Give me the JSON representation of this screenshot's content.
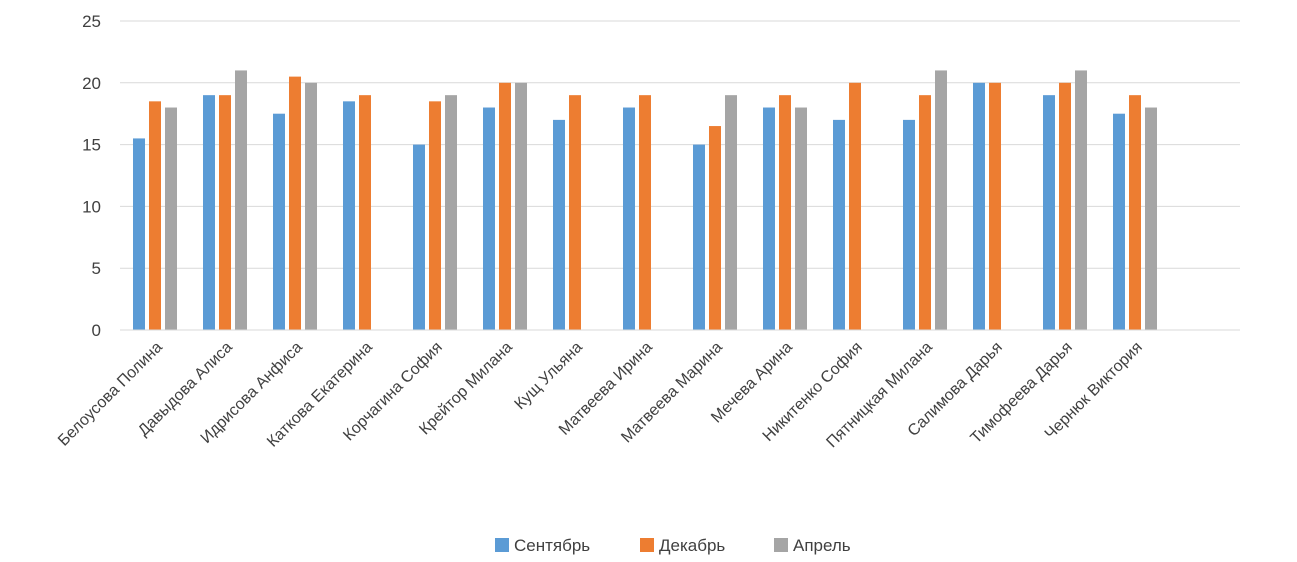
{
  "chart_data": {
    "type": "bar",
    "categories": [
      "Белоусова Полина",
      "Давыдова Алиса",
      "Идрисова Анфиса",
      "Каткова Екатерина",
      "Корчагина София",
      "Крейтор Милана",
      "Кущ Ульяна",
      "Матвеева Ирина",
      "Матвеева Марина",
      "Мечева Арина",
      "Никитенко София",
      "Пятницкая Милана",
      "Салимова Дарья",
      "Тимофеева Дарья",
      "Чернюк Виктория"
    ],
    "series": [
      {
        "name": "Сентябрь",
        "color": "#5B9BD5",
        "values": [
          15.5,
          19,
          17.5,
          18.5,
          15,
          18,
          17,
          18,
          15,
          18,
          17,
          17,
          20,
          19,
          17.5
        ]
      },
      {
        "name": "Декабрь",
        "color": "#ED7D31",
        "values": [
          18.5,
          19,
          20.5,
          19,
          18.5,
          20,
          19,
          19,
          16.5,
          19,
          20,
          19,
          20,
          20,
          19
        ]
      },
      {
        "name": "Апрель",
        "color": "#A5A5A5",
        "values": [
          18,
          21,
          20,
          0,
          19,
          20,
          0,
          0,
          19,
          18,
          0,
          21,
          0,
          21,
          18
        ]
      }
    ],
    "y_ticks": [
      "0",
      "5",
      "10",
      "15",
      "20",
      "25"
    ],
    "ylim": [
      0,
      25
    ],
    "grid": true,
    "legend_position": "bottom",
    "title": "",
    "xlabel": "",
    "ylabel": ""
  }
}
